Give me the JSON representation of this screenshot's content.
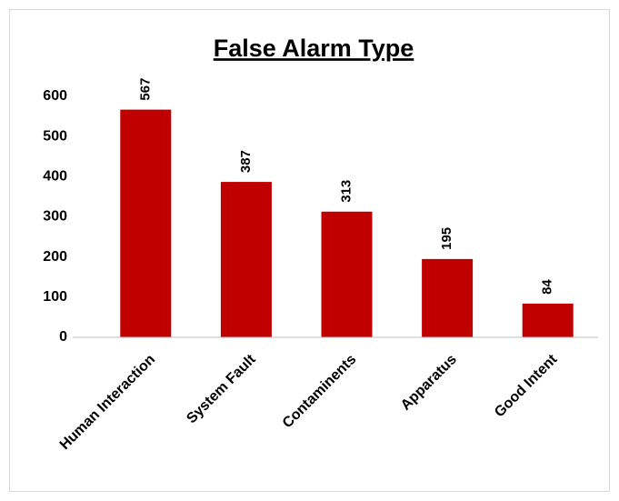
{
  "chart_data": {
    "type": "bar",
    "title": "False Alarm Type",
    "categories": [
      "Human Interaction",
      "System Fault",
      "Contaminents",
      "Apparatus",
      "Good Intent"
    ],
    "values": [
      567,
      387,
      313,
      195,
      84
    ],
    "color": "#c00000",
    "ylim": [
      0,
      600
    ],
    "yticks": [
      0,
      100,
      200,
      300,
      400,
      500,
      600
    ],
    "grid": false
  }
}
